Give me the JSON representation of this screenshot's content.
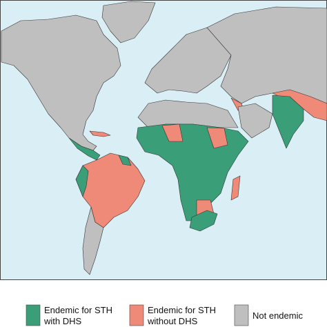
{
  "legend": {
    "items": [
      {
        "lines": [
          "Endemic for STH",
          "with DHS"
        ],
        "color": "#3a9f78"
      },
      {
        "lines": [
          "Endemic for STH",
          "without DHS"
        ],
        "color": "#ef8a78"
      },
      {
        "lines": [
          "Not endemic"
        ],
        "color": "#bfbfbf"
      }
    ]
  }
}
